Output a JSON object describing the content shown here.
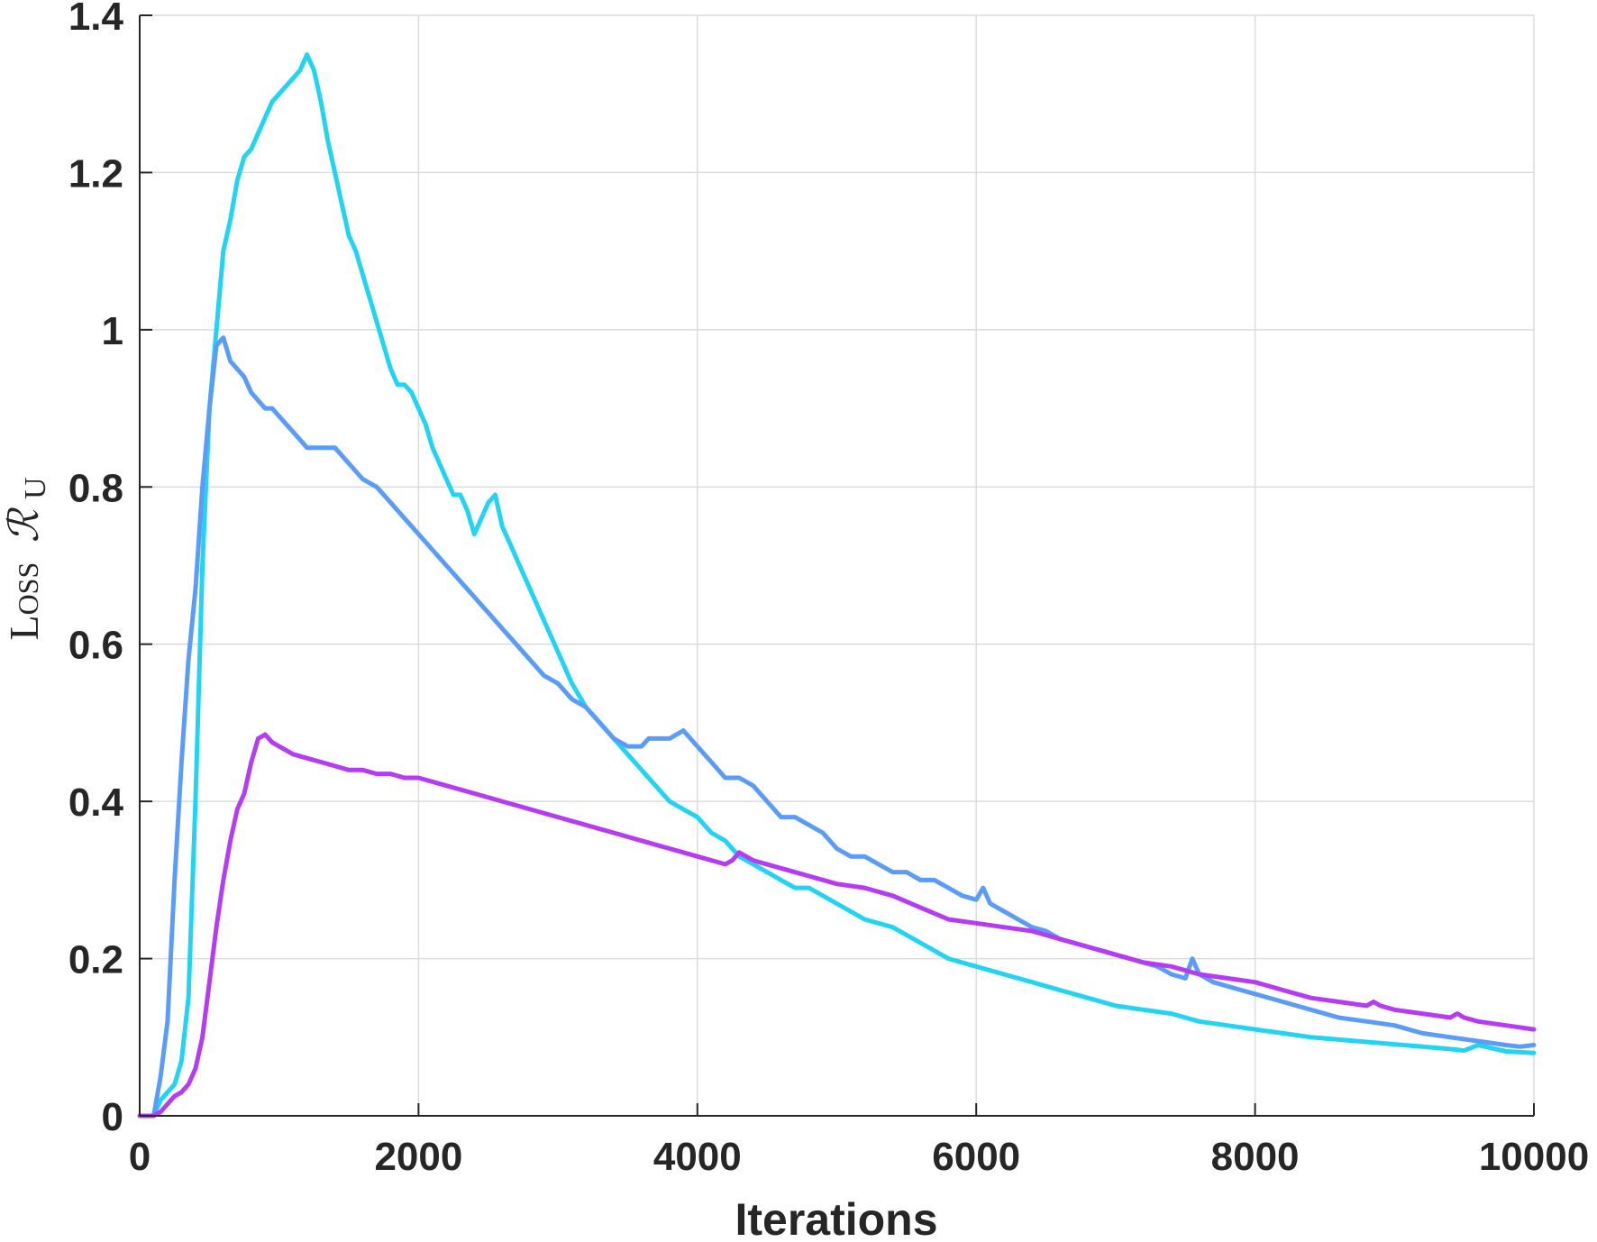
{
  "chart_data": {
    "type": "line",
    "title": "",
    "xlabel": "Iterations",
    "ylabel": {
      "text": "Loss",
      "symbol": "ℛ",
      "subscript": "U"
    },
    "xlim": [
      0,
      10000
    ],
    "ylim": [
      0,
      1.4
    ],
    "xticks": [
      0,
      2000,
      4000,
      6000,
      8000,
      10000
    ],
    "xtick_labels": [
      "0",
      "2000",
      "4000",
      "6000",
      "8000",
      "10000"
    ],
    "yticks": [
      0,
      0.2,
      0.4,
      0.6,
      0.8,
      1,
      1.2,
      1.4
    ],
    "ytick_labels": [
      "0",
      "0.2",
      "0.4",
      "0.6",
      "0.8",
      "1",
      "1.2",
      "1.4"
    ],
    "grid": true,
    "legend": "none",
    "series": [
      {
        "color": "#21D4F2",
        "x": [
          0,
          100,
          150,
          200,
          250,
          300,
          350,
          400,
          450,
          500,
          550,
          600,
          650,
          700,
          750,
          800,
          850,
          900,
          950,
          1000,
          1050,
          1100,
          1150,
          1200,
          1250,
          1300,
          1350,
          1400,
          1450,
          1500,
          1550,
          1600,
          1650,
          1700,
          1750,
          1800,
          1850,
          1900,
          1950,
          2000,
          2050,
          2100,
          2150,
          2200,
          2250,
          2300,
          2350,
          2400,
          2450,
          2500,
          2550,
          2600,
          2650,
          2700,
          2750,
          2800,
          2850,
          2900,
          2950,
          3000,
          3100,
          3200,
          3300,
          3400,
          3500,
          3600,
          3700,
          3800,
          3900,
          4000,
          4100,
          4200,
          4300,
          4400,
          4500,
          4600,
          4700,
          4800,
          4900,
          5000,
          5200,
          5400,
          5600,
          5800,
          6000,
          6200,
          6400,
          6600,
          6800,
          7000,
          7200,
          7400,
          7600,
          7800,
          8000,
          8200,
          8400,
          8600,
          8800,
          9000,
          9200,
          9400,
          9500,
          9600,
          9800,
          10000
        ],
        "values": [
          0,
          0,
          0.02,
          0.03,
          0.04,
          0.07,
          0.15,
          0.4,
          0.7,
          0.9,
          1.0,
          1.1,
          1.14,
          1.19,
          1.22,
          1.23,
          1.25,
          1.27,
          1.29,
          1.3,
          1.31,
          1.32,
          1.33,
          1.35,
          1.33,
          1.29,
          1.24,
          1.2,
          1.16,
          1.12,
          1.1,
          1.07,
          1.04,
          1.01,
          0.98,
          0.95,
          0.93,
          0.93,
          0.92,
          0.9,
          0.88,
          0.85,
          0.83,
          0.81,
          0.79,
          0.79,
          0.77,
          0.74,
          0.76,
          0.78,
          0.79,
          0.75,
          0.73,
          0.71,
          0.69,
          0.67,
          0.65,
          0.63,
          0.61,
          0.59,
          0.55,
          0.52,
          0.5,
          0.48,
          0.46,
          0.44,
          0.42,
          0.4,
          0.39,
          0.38,
          0.36,
          0.35,
          0.33,
          0.32,
          0.31,
          0.3,
          0.29,
          0.29,
          0.28,
          0.27,
          0.25,
          0.24,
          0.22,
          0.2,
          0.19,
          0.18,
          0.17,
          0.16,
          0.15,
          0.14,
          0.135,
          0.13,
          0.12,
          0.115,
          0.11,
          0.105,
          0.1,
          0.097,
          0.094,
          0.091,
          0.088,
          0.085,
          0.083,
          0.09,
          0.082,
          0.08
        ]
      },
      {
        "color": "#5B9CF8",
        "x": [
          0,
          100,
          150,
          200,
          250,
          300,
          350,
          400,
          450,
          500,
          550,
          600,
          650,
          700,
          750,
          800,
          850,
          900,
          950,
          1000,
          1100,
          1200,
          1300,
          1400,
          1500,
          1600,
          1700,
          1800,
          1900,
          2000,
          2100,
          2200,
          2300,
          2400,
          2500,
          2600,
          2700,
          2800,
          2900,
          3000,
          3100,
          3200,
          3300,
          3400,
          3500,
          3550,
          3600,
          3650,
          3700,
          3800,
          3900,
          4000,
          4100,
          4200,
          4300,
          4400,
          4500,
          4600,
          4700,
          4800,
          4900,
          5000,
          5100,
          5200,
          5300,
          5400,
          5500,
          5600,
          5700,
          5800,
          5900,
          6000,
          6050,
          6100,
          6200,
          6300,
          6400,
          6500,
          6600,
          6700,
          6800,
          6900,
          7000,
          7100,
          7200,
          7300,
          7400,
          7500,
          7550,
          7600,
          7700,
          7800,
          7900,
          8000,
          8200,
          8400,
          8600,
          8800,
          9000,
          9200,
          9400,
          9600,
          9800,
          9900,
          10000
        ],
        "values": [
          0,
          0,
          0.05,
          0.12,
          0.3,
          0.45,
          0.58,
          0.67,
          0.8,
          0.9,
          0.98,
          0.99,
          0.96,
          0.95,
          0.94,
          0.92,
          0.91,
          0.9,
          0.9,
          0.89,
          0.87,
          0.85,
          0.85,
          0.85,
          0.83,
          0.81,
          0.8,
          0.78,
          0.76,
          0.74,
          0.72,
          0.7,
          0.68,
          0.66,
          0.64,
          0.62,
          0.6,
          0.58,
          0.56,
          0.55,
          0.53,
          0.52,
          0.5,
          0.48,
          0.47,
          0.47,
          0.47,
          0.48,
          0.48,
          0.48,
          0.49,
          0.47,
          0.45,
          0.43,
          0.43,
          0.42,
          0.4,
          0.38,
          0.38,
          0.37,
          0.36,
          0.34,
          0.33,
          0.33,
          0.32,
          0.31,
          0.31,
          0.3,
          0.3,
          0.29,
          0.28,
          0.275,
          0.29,
          0.27,
          0.26,
          0.25,
          0.24,
          0.235,
          0.225,
          0.22,
          0.215,
          0.21,
          0.205,
          0.2,
          0.195,
          0.19,
          0.18,
          0.175,
          0.2,
          0.18,
          0.17,
          0.165,
          0.16,
          0.155,
          0.145,
          0.135,
          0.125,
          0.12,
          0.115,
          0.105,
          0.1,
          0.095,
          0.09,
          0.088,
          0.09
        ]
      },
      {
        "color": "#B53CF2",
        "x": [
          0,
          100,
          150,
          200,
          250,
          300,
          350,
          400,
          450,
          500,
          550,
          600,
          650,
          700,
          750,
          800,
          850,
          900,
          950,
          1000,
          1100,
          1200,
          1300,
          1400,
          1500,
          1600,
          1700,
          1800,
          1900,
          2000,
          2200,
          2400,
          2600,
          2800,
          3000,
          3200,
          3400,
          3600,
          3800,
          4000,
          4200,
          4250,
          4300,
          4350,
          4400,
          4600,
          4800,
          5000,
          5200,
          5400,
          5600,
          5800,
          6000,
          6200,
          6400,
          6600,
          6800,
          7000,
          7200,
          7400,
          7600,
          7800,
          8000,
          8200,
          8400,
          8600,
          8800,
          8850,
          8900,
          9000,
          9200,
          9400,
          9450,
          9500,
          9600,
          9800,
          10000
        ],
        "values": [
          0,
          0,
          0.005,
          0.015,
          0.025,
          0.03,
          0.04,
          0.06,
          0.1,
          0.17,
          0.24,
          0.3,
          0.35,
          0.39,
          0.41,
          0.45,
          0.48,
          0.485,
          0.475,
          0.47,
          0.46,
          0.455,
          0.45,
          0.445,
          0.44,
          0.44,
          0.435,
          0.435,
          0.43,
          0.43,
          0.42,
          0.41,
          0.4,
          0.39,
          0.38,
          0.37,
          0.36,
          0.35,
          0.34,
          0.33,
          0.32,
          0.325,
          0.335,
          0.33,
          0.325,
          0.315,
          0.305,
          0.295,
          0.29,
          0.28,
          0.265,
          0.25,
          0.245,
          0.24,
          0.235,
          0.225,
          0.215,
          0.205,
          0.195,
          0.19,
          0.18,
          0.175,
          0.17,
          0.16,
          0.15,
          0.145,
          0.14,
          0.145,
          0.14,
          0.135,
          0.13,
          0.125,
          0.13,
          0.125,
          0.12,
          0.115,
          0.11
        ]
      }
    ]
  }
}
